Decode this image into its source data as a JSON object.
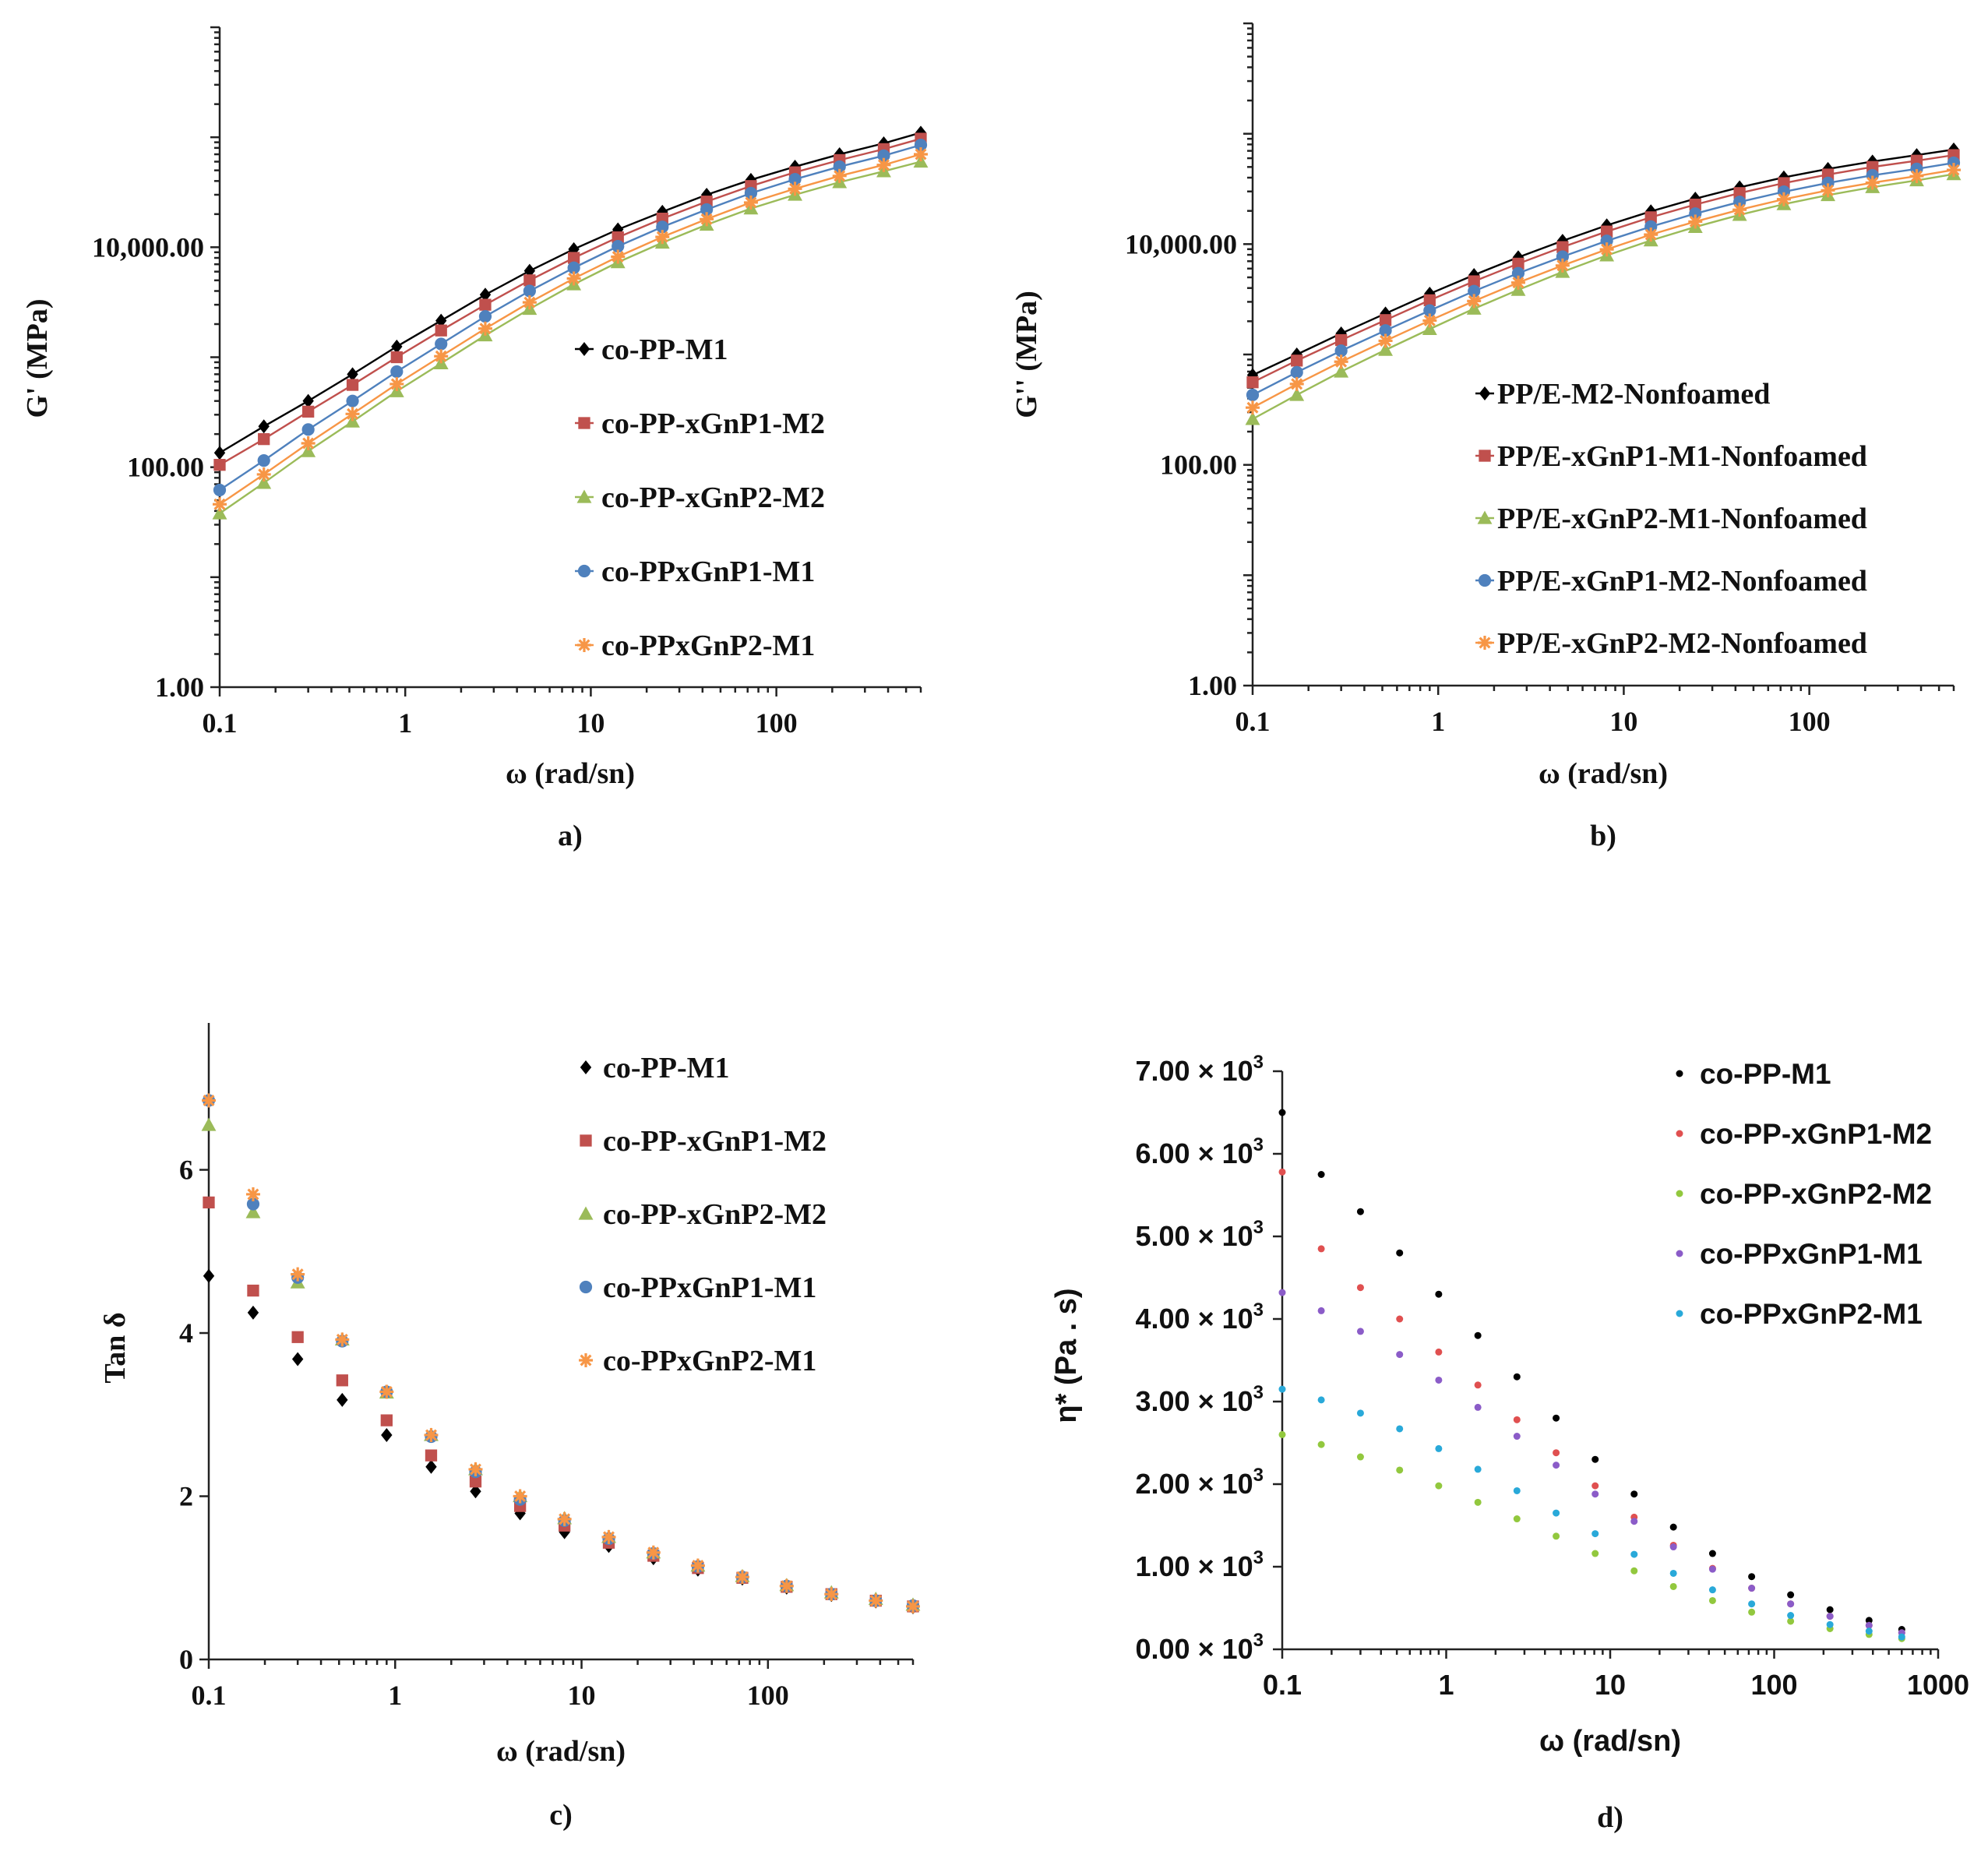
{
  "chart_data": [
    {
      "id": "a",
      "type": "line",
      "caption": "a)",
      "xlabel": "ω (rad/sn)",
      "ylabel": "G' (MPa)",
      "xscale": "log",
      "yscale": "log",
      "xlim": [
        0.1,
        600
      ],
      "ylim": [
        1,
        1000000
      ],
      "xticks": [
        0.1,
        1,
        10,
        100
      ],
      "xtick_labels": [
        "0.1",
        "1",
        "10",
        "100"
      ],
      "yticks": [
        1,
        100,
        10000
      ],
      "ytick_labels": [
        "1.00",
        "100.00",
        "10,000.00"
      ],
      "legend_position": "center-right",
      "x": [
        0.1,
        0.173,
        0.3,
        0.52,
        0.9,
        1.56,
        2.7,
        4.68,
        8.1,
        14,
        24.3,
        42.1,
        72.9,
        126,
        219,
        379,
        600
      ],
      "series": [
        {
          "name": "co-PP-M1",
          "marker": "diamond",
          "color": "#000000",
          "values": [
            135,
            235,
            400,
            700,
            1250,
            2150,
            3700,
            6100,
            9600,
            14500,
            21000,
            30000,
            41000,
            54000,
            70000,
            88000,
            110000
          ]
        },
        {
          "name": "co-PP-xGnP1-M2",
          "marker": "square",
          "color": "#c0504d",
          "values": [
            105,
            180,
            320,
            560,
            1000,
            1750,
            3000,
            5000,
            8000,
            12300,
            18200,
            26000,
            36000,
            48000,
            62000,
            78000,
            97000
          ]
        },
        {
          "name": "co-PP-xGnP2-M2",
          "marker": "triangle",
          "color": "#9bbb59",
          "values": [
            38,
            72,
            140,
            260,
            490,
            880,
            1580,
            2750,
            4600,
            7300,
            11000,
            16000,
            22500,
            30000,
            39000,
            49000,
            60000
          ]
        },
        {
          "name": "co-PPxGnP1-M1",
          "marker": "circle",
          "color": "#4f81bd",
          "values": [
            62,
            115,
            220,
            400,
            740,
            1320,
            2350,
            4000,
            6500,
            10200,
            15300,
            22000,
            31000,
            41500,
            54000,
            68000,
            85000
          ]
        },
        {
          "name": "co-PPxGnP2-M1",
          "marker": "star",
          "color": "#f79646",
          "values": [
            46,
            86,
            165,
            305,
            570,
            1020,
            1820,
            3150,
            5200,
            8200,
            12400,
            18000,
            25500,
            34000,
            44500,
            56000,
            70000
          ]
        }
      ]
    },
    {
      "id": "b",
      "type": "line",
      "caption": "b)",
      "xlabel": "ω (rad/sn)",
      "ylabel": "G'' (MPa)",
      "xscale": "log",
      "yscale": "log",
      "xlim": [
        0.1,
        600
      ],
      "ylim": [
        1,
        1000000
      ],
      "xticks": [
        0.1,
        1,
        10,
        100
      ],
      "xtick_labels": [
        "0.1",
        "1",
        "10",
        "100"
      ],
      "yticks": [
        1,
        100,
        10000
      ],
      "ytick_labels": [
        "1.00",
        "100.00",
        "10,000.00"
      ],
      "legend_position": "bottom-right",
      "x": [
        0.1,
        0.173,
        0.3,
        0.52,
        0.9,
        1.56,
        2.7,
        4.68,
        8.1,
        14,
        24.3,
        42.1,
        72.9,
        126,
        219,
        379,
        600
      ],
      "series": [
        {
          "name": "PP/E-M2-Nonfoamed",
          "marker": "diamond",
          "color": "#000000",
          "values": [
            650,
            1000,
            1550,
            2350,
            3550,
            5250,
            7600,
            10700,
            14800,
            19800,
            25800,
            32700,
            40200,
            48000,
            56000,
            64000,
            72000
          ]
        },
        {
          "name": "PP/E-xGnP1-M1-Nonfoamed",
          "marker": "square",
          "color": "#c0504d",
          "values": [
            560,
            880,
            1350,
            2050,
            3100,
            4600,
            6650,
            9400,
            13000,
            17500,
            22800,
            29000,
            35700,
            42700,
            50000,
            57000,
            64000
          ]
        },
        {
          "name": "PP/E-xGnP2-M1-Nonfoamed",
          "marker": "triangle",
          "color": "#9bbb59",
          "values": [
            260,
            430,
            700,
            1100,
            1700,
            2600,
            3850,
            5600,
            7900,
            10800,
            14300,
            18400,
            23000,
            27800,
            32800,
            37800,
            43000
          ]
        },
        {
          "name": "PP/E-xGnP1-M2-Nonfoamed",
          "marker": "circle",
          "color": "#4f81bd",
          "values": [
            430,
            690,
            1080,
            1650,
            2500,
            3750,
            5450,
            7700,
            10700,
            14400,
            18900,
            24100,
            29800,
            35800,
            42000,
            48000,
            54500
          ]
        },
        {
          "name": "PP/E-xGnP2-M2-Nonfoamed",
          "marker": "star",
          "color": "#f79646",
          "values": [
            330,
            540,
            860,
            1330,
            2030,
            3050,
            4480,
            6400,
            8950,
            12200,
            16000,
            20500,
            25500,
            30700,
            36000,
            41300,
            47000
          ]
        }
      ]
    },
    {
      "id": "c",
      "type": "scatter",
      "caption": "c)",
      "xlabel": "ω (rad/sn)",
      "ylabel": "Tan δ",
      "xscale": "log",
      "yscale": "linear",
      "xlim": [
        0.1,
        600
      ],
      "ylim": [
        0,
        7.8
      ],
      "xticks": [
        0.1,
        1,
        10,
        100
      ],
      "xtick_labels": [
        "0.1",
        "1",
        "10",
        "100"
      ],
      "yticks": [
        0,
        2,
        4,
        6
      ],
      "ytick_labels": [
        "0",
        "2",
        "4",
        "6"
      ],
      "legend_position": "top-right",
      "x": [
        0.1,
        0.173,
        0.3,
        0.52,
        0.9,
        1.56,
        2.7,
        4.68,
        8.1,
        14,
        24.3,
        42.1,
        72.9,
        126,
        219,
        379,
        600
      ],
      "series": [
        {
          "name": "co-PP-M1",
          "marker": "diamond",
          "color": "#000000",
          "values": [
            4.7,
            4.25,
            3.68,
            3.18,
            2.75,
            2.36,
            2.06,
            1.79,
            1.56,
            1.39,
            1.24,
            1.1,
            0.99,
            0.88,
            0.79,
            0.71,
            0.64
          ]
        },
        {
          "name": "co-PP-xGnP1-M2",
          "marker": "square",
          "color": "#c0504d",
          "values": [
            5.6,
            4.52,
            3.95,
            3.42,
            2.93,
            2.5,
            2.18,
            1.88,
            1.64,
            1.43,
            1.27,
            1.12,
            1.0,
            0.89,
            0.8,
            0.72,
            0.65
          ]
        },
        {
          "name": "co-PP-xGnP2-M2",
          "marker": "triangle",
          "color": "#9bbb59",
          "values": [
            6.55,
            5.48,
            4.62,
            3.92,
            3.27,
            2.75,
            2.33,
            2.0,
            1.73,
            1.5,
            1.31,
            1.15,
            1.02,
            0.91,
            0.82,
            0.74,
            0.67
          ]
        },
        {
          "name": "co-PPxGnP1-M1",
          "marker": "circle",
          "color": "#4f81bd",
          "values": [
            6.85,
            5.58,
            4.68,
            3.9,
            3.28,
            2.73,
            2.3,
            1.96,
            1.7,
            1.48,
            1.3,
            1.14,
            1.01,
            0.9,
            0.8,
            0.72,
            0.66
          ]
        },
        {
          "name": "co-PPxGnP2-M1",
          "marker": "star",
          "color": "#f79646",
          "values": [
            6.85,
            5.7,
            4.72,
            3.92,
            3.28,
            2.75,
            2.33,
            2.0,
            1.72,
            1.5,
            1.31,
            1.15,
            1.01,
            0.9,
            0.8,
            0.72,
            0.65
          ]
        }
      ]
    },
    {
      "id": "d",
      "type": "scatter",
      "caption": "d)",
      "xlabel": "ω (rad/sn)",
      "ylabel": "η* (Pa . s)",
      "xscale": "log",
      "yscale": "linear",
      "xlim": [
        0.1,
        1000
      ],
      "ylim": [
        0,
        7000
      ],
      "xticks": [
        0.1,
        1,
        10,
        100,
        1000
      ],
      "xtick_labels": [
        "0.1",
        "1",
        "10",
        "100",
        "1000"
      ],
      "yticks": [
        0,
        1000,
        2000,
        3000,
        4000,
        5000,
        6000,
        7000
      ],
      "ytick_labels": [
        "0.00",
        "1.00",
        "2.00",
        "3.00",
        "4.00",
        "5.00",
        "6.00",
        "7.00"
      ],
      "ytick_suffix": "× 10",
      "ytick_exponent": "3",
      "legend_position": "top-right",
      "x": [
        0.1,
        0.173,
        0.3,
        0.52,
        0.9,
        1.56,
        2.7,
        4.68,
        8.1,
        14,
        24.3,
        42.1,
        72.9,
        126,
        219,
        379,
        600
      ],
      "series": [
        {
          "name": "co-PP-M1",
          "marker": "dot",
          "color": "#000000",
          "values": [
            6500,
            5750,
            5300,
            4800,
            4300,
            3800,
            3300,
            2800,
            2300,
            1880,
            1480,
            1160,
            880,
            660,
            480,
            350,
            240
          ]
        },
        {
          "name": "co-PP-xGnP1-M2",
          "marker": "dot",
          "color": "#e05050",
          "values": [
            5780,
            4850,
            4380,
            4000,
            3600,
            3200,
            2780,
            2380,
            1980,
            1600,
            1260,
            980,
            740,
            550,
            400,
            290,
            200
          ]
        },
        {
          "name": "co-PP-xGnP2-M2",
          "marker": "dot",
          "color": "#92c83e",
          "values": [
            2600,
            2480,
            2330,
            2170,
            1980,
            1780,
            1580,
            1370,
            1160,
            950,
            760,
            590,
            450,
            340,
            250,
            180,
            130
          ]
        },
        {
          "name": "co-PPxGnP1-M1",
          "marker": "dot",
          "color": "#8b5cc8",
          "values": [
            4320,
            4100,
            3850,
            3570,
            3260,
            2930,
            2580,
            2230,
            1880,
            1550,
            1240,
            970,
            740,
            550,
            400,
            290,
            200
          ]
        },
        {
          "name": "co-PPxGnP2-M1",
          "marker": "dot",
          "color": "#29a9d9",
          "values": [
            3150,
            3020,
            2860,
            2670,
            2430,
            2180,
            1920,
            1650,
            1400,
            1150,
            920,
            720,
            550,
            410,
            300,
            220,
            150
          ]
        }
      ]
    }
  ]
}
